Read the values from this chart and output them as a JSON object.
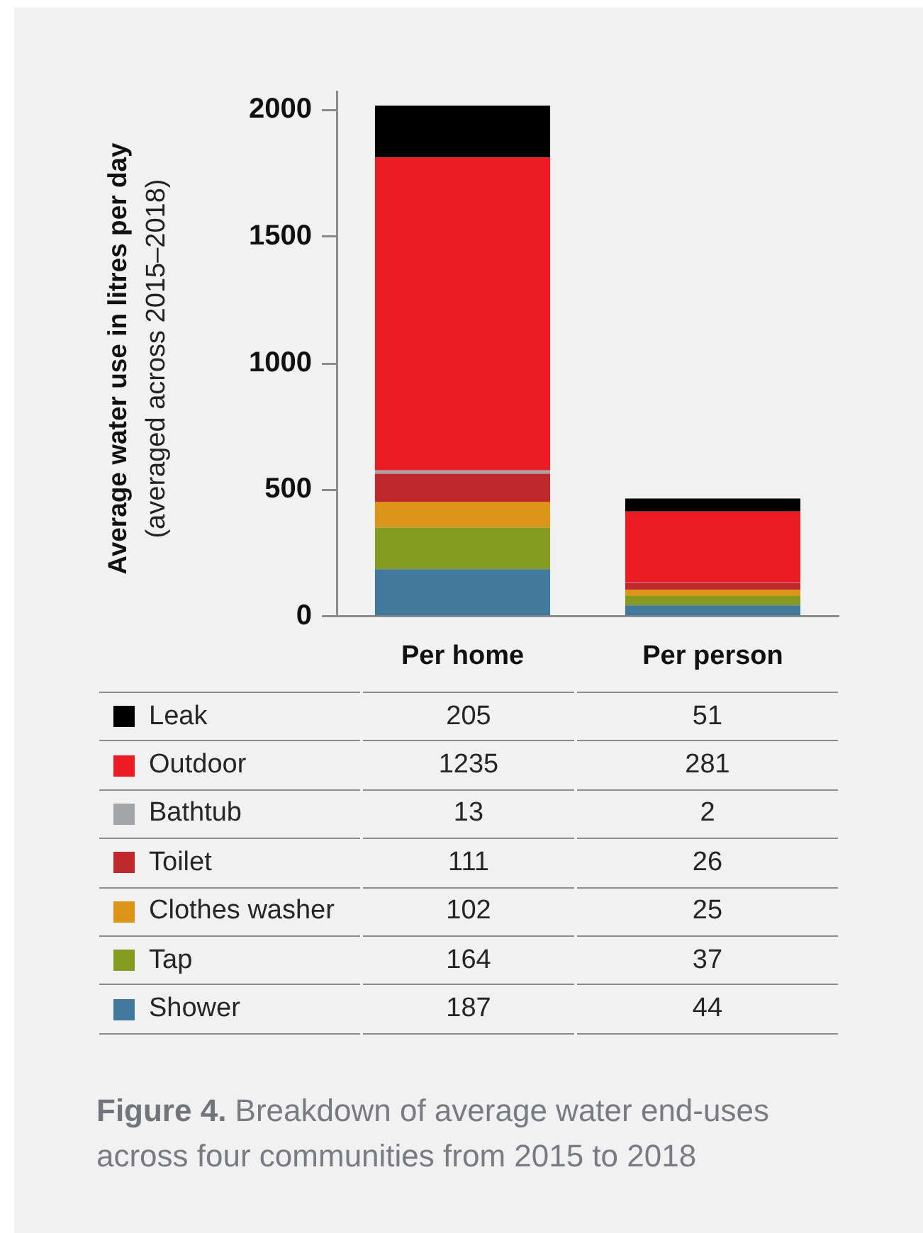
{
  "chart_data": {
    "type": "bar",
    "categories": [
      "Per home",
      "Per person"
    ],
    "ylabel": "Average water use in litres per day\n(averaged across 2015–2018)",
    "stacked": true,
    "ylim": [
      0,
      2070
    ],
    "yticks": [
      0,
      500,
      1000,
      1500,
      2000
    ],
    "legend": "bottom",
    "data_labels": true,
    "series": [
      {
        "name": "Shower",
        "color": "#41789b",
        "values": [
          187,
          44
        ]
      },
      {
        "name": "Tap",
        "color": "#849a21",
        "values": [
          164,
          37
        ]
      },
      {
        "name": "Clothes washer",
        "color": "#dd9519",
        "values": [
          102,
          25
        ]
      },
      {
        "name": "Toilet",
        "color": "#c0272d",
        "values": [
          111,
          26
        ]
      },
      {
        "name": "Bathtub",
        "color": "#a3a5a8",
        "values": [
          13,
          2
        ]
      },
      {
        "name": "Outdoor",
        "color": "#ec1c24",
        "values": [
          1235,
          281
        ]
      },
      {
        "name": "Leak",
        "color": "#000000",
        "values": [
          205,
          51
        ]
      }
    ],
    "annotations": [
      "Figure 4.",
      "Breakdown of average water end-uses across four communities from 2015 to 2018"
    ]
  }
}
